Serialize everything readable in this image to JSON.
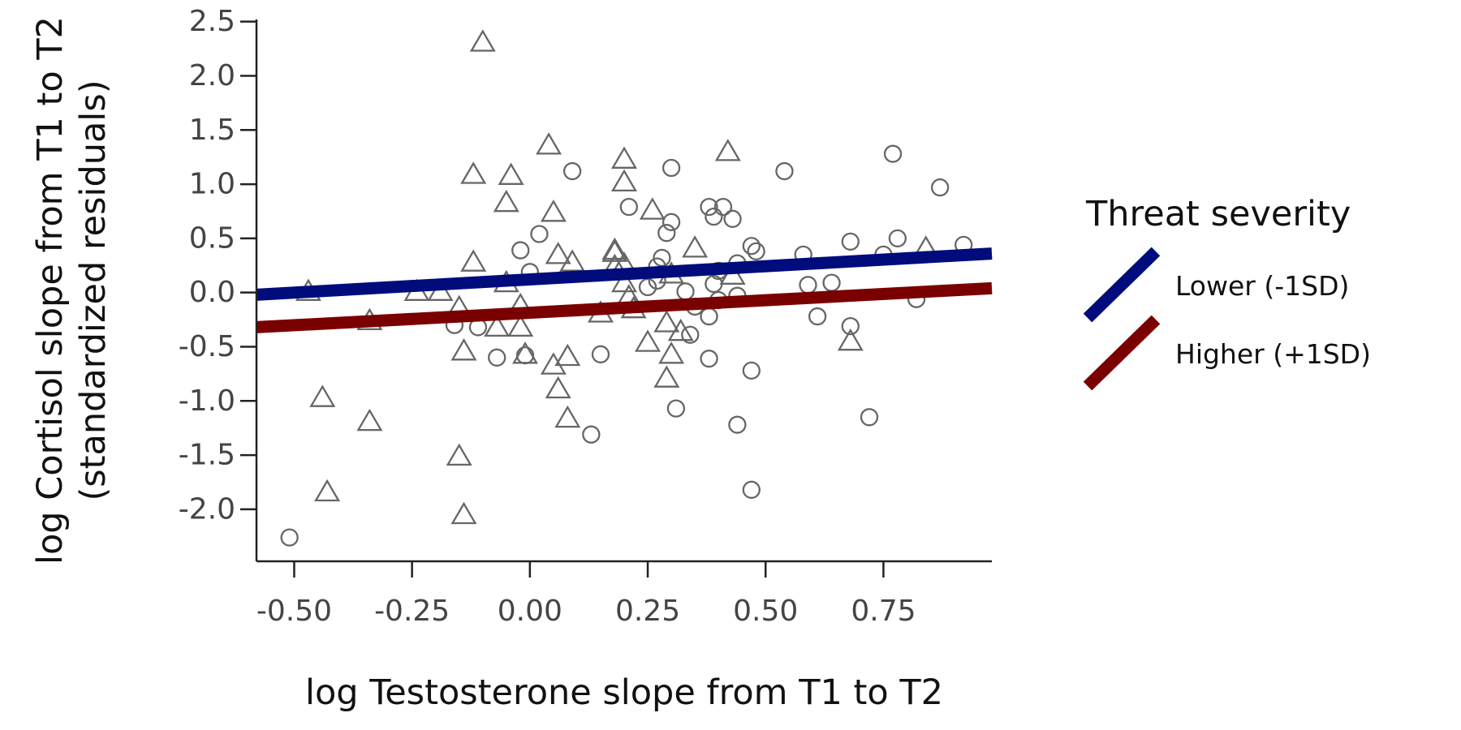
{
  "chart_data": {
    "type": "scatter",
    "xlabel": "log Testosterone slope from T1 to T2",
    "ylabel_lines": [
      "log Cortisol slope from T1 to T2",
      "(standardized residuals)"
    ],
    "xlim": [
      -0.58,
      0.98
    ],
    "ylim": [
      -2.48,
      2.52
    ],
    "x_ticks": [
      -0.5,
      -0.25,
      0,
      0.25,
      0.5,
      0.75
    ],
    "x_tick_labels": [
      "-0.50",
      "-0.25",
      "0.00",
      "0.25",
      "0.50",
      "0.75"
    ],
    "y_ticks": [
      2.5,
      2.0,
      1.5,
      1.0,
      0.5,
      0.0,
      -0.5,
      -1.0,
      -1.5,
      -2.0
    ],
    "y_tick_labels": [
      "2.5",
      "2.0",
      "1.5",
      "1.0",
      "0.5",
      "0.0",
      "-0.5",
      "-1.0",
      "-1.5",
      "-2.0"
    ],
    "grid": false,
    "point_color": "#666666",
    "legend": {
      "title": "Threat severity",
      "placement": "right",
      "entries": [
        {
          "label": "Lower (-1SD)",
          "color": "#000c7c"
        },
        {
          "label": "Higher (+1SD)",
          "color": "#7a0000"
        }
      ]
    },
    "lines": [
      {
        "label": "Lower (-1SD)",
        "color": "#000c7c",
        "x": [
          -0.58,
          0.98
        ],
        "y": [
          -0.02,
          0.36
        ]
      },
      {
        "label": "Higher (+1SD)",
        "color": "#7a0000",
        "x": [
          -0.58,
          0.98
        ],
        "y": [
          -0.32,
          0.04
        ]
      }
    ],
    "series": [
      {
        "marker": "triangle",
        "points": [
          [
            -0.1,
            2.3
          ],
          [
            0.04,
            1.35
          ],
          [
            -0.12,
            1.08
          ],
          [
            -0.04,
            1.07
          ],
          [
            0.2,
            1.22
          ],
          [
            0.2,
            1.01
          ],
          [
            0.42,
            1.29
          ],
          [
            -0.05,
            0.82
          ],
          [
            0.05,
            0.73
          ],
          [
            0.26,
            0.75
          ],
          [
            0.18,
            0.38
          ],
          [
            0.18,
            0.36
          ],
          [
            0.35,
            0.4
          ],
          [
            0.06,
            0.34
          ],
          [
            0.09,
            0.27
          ],
          [
            -0.12,
            0.27
          ],
          [
            0.84,
            0.4
          ],
          [
            0.2,
            0.25
          ],
          [
            0.18,
            0.23
          ],
          [
            0.3,
            0.16
          ],
          [
            0.43,
            0.15
          ],
          [
            0.2,
            0.08
          ],
          [
            -0.05,
            0.08
          ],
          [
            -0.47,
            0.0
          ],
          [
            -0.24,
            0.0
          ],
          [
            -0.19,
            0.0
          ],
          [
            -0.15,
            -0.15
          ],
          [
            -0.02,
            -0.13
          ],
          [
            0.21,
            -0.05
          ],
          [
            0.22,
            -0.16
          ],
          [
            0.15,
            -0.2
          ],
          [
            -0.34,
            -0.27
          ],
          [
            -0.07,
            -0.33
          ],
          [
            -0.02,
            -0.33
          ],
          [
            0.29,
            -0.29
          ],
          [
            0.32,
            -0.37
          ],
          [
            -0.14,
            -0.55
          ],
          [
            -0.01,
            -0.58
          ],
          [
            0.08,
            -0.6
          ],
          [
            0.25,
            -0.47
          ],
          [
            0.3,
            -0.58
          ],
          [
            0.68,
            -0.46
          ],
          [
            0.05,
            -0.68
          ],
          [
            0.06,
            -0.9
          ],
          [
            0.29,
            -0.8
          ],
          [
            -0.44,
            -0.98
          ],
          [
            -0.34,
            -1.2
          ],
          [
            0.08,
            -1.17
          ],
          [
            -0.15,
            -1.52
          ],
          [
            -0.43,
            -1.85
          ],
          [
            -0.14,
            -2.06
          ]
        ]
      },
      {
        "marker": "circle",
        "points": [
          [
            0.09,
            1.12
          ],
          [
            0.3,
            1.15
          ],
          [
            0.54,
            1.12
          ],
          [
            0.77,
            1.28
          ],
          [
            0.87,
            0.97
          ],
          [
            0.21,
            0.79
          ],
          [
            0.38,
            0.79
          ],
          [
            0.41,
            0.79
          ],
          [
            0.39,
            0.7
          ],
          [
            0.43,
            0.68
          ],
          [
            0.3,
            0.65
          ],
          [
            0.02,
            0.54
          ],
          [
            0.29,
            0.55
          ],
          [
            0.78,
            0.5
          ],
          [
            0.68,
            0.47
          ],
          [
            0.92,
            0.44
          ],
          [
            0.47,
            0.43
          ],
          [
            -0.02,
            0.39
          ],
          [
            0.48,
            0.38
          ],
          [
            0.58,
            0.35
          ],
          [
            0.75,
            0.35
          ],
          [
            0.28,
            0.32
          ],
          [
            0.44,
            0.27
          ],
          [
            0.27,
            0.24
          ],
          [
            0.4,
            0.2
          ],
          [
            0.0,
            0.19
          ],
          [
            0.27,
            0.11
          ],
          [
            0.25,
            0.05
          ],
          [
            0.59,
            0.07
          ],
          [
            0.64,
            0.09
          ],
          [
            0.39,
            0.08
          ],
          [
            0.33,
            0.01
          ],
          [
            0.44,
            -0.03
          ],
          [
            0.4,
            -0.07
          ],
          [
            0.35,
            -0.13
          ],
          [
            0.82,
            -0.06
          ],
          [
            0.61,
            -0.22
          ],
          [
            0.38,
            -0.22
          ],
          [
            -0.16,
            -0.3
          ],
          [
            -0.11,
            -0.32
          ],
          [
            0.68,
            -0.31
          ],
          [
            0.34,
            -0.39
          ],
          [
            -0.07,
            -0.6
          ],
          [
            -0.01,
            -0.58
          ],
          [
            0.15,
            -0.57
          ],
          [
            0.38,
            -0.61
          ],
          [
            0.47,
            -0.72
          ],
          [
            0.31,
            -1.07
          ],
          [
            0.72,
            -1.15
          ],
          [
            0.44,
            -1.22
          ],
          [
            0.13,
            -1.31
          ],
          [
            0.47,
            -1.82
          ],
          [
            -0.51,
            -2.26
          ]
        ]
      }
    ]
  }
}
